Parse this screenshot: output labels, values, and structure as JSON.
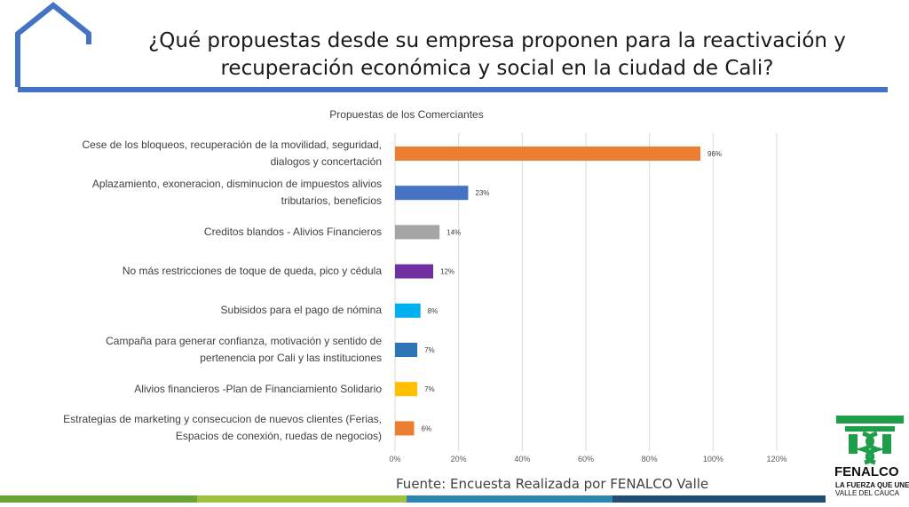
{
  "slide": {
    "title_line1": "¿Qué propuestas desde su empresa proponen para la reactivación y",
    "title_line2": "recuperación económica y social en la ciudad de Cali?",
    "source": "Fuente: Encuesta Realizada por FENALCO Valle",
    "logo": {
      "name": "FENALCO",
      "tagline1": "LA FUERZA QUE UNE",
      "tagline2": "VALLE DEL CAUCA",
      "color": "#1f9e4a"
    },
    "frame_color": "#4472c4",
    "footer_colors": [
      "#6aa338",
      "#9fc13f",
      "#2e86ad",
      "#1f4e79"
    ]
  },
  "chart_data": {
    "type": "bar",
    "orientation": "horizontal",
    "title": "Propuestas de los Comerciantes",
    "categories": [
      [
        "Cese de los bloqueos, recuperación de la movilidad, seguridad,",
        "dialogos y concertación"
      ],
      [
        "Aplazamiento, exoneracion, disminucion de impuestos alivios",
        "tributarios, beneficios"
      ],
      [
        "Creditos blandos - Alivios Financieros"
      ],
      [
        "No más restricciones de toque de queda, pico y cédula"
      ],
      [
        "Subisidos para el pago de nómina"
      ],
      [
        "Campaña para generar confianza, motivación y sentido de",
        "pertenencia por Cali y las instituciones"
      ],
      [
        "Alivios financieros -Plan de Financiamiento Solidario"
      ],
      [
        "Estrategias de marketing y consecucion de nuevos clientes (Ferias,",
        "Espacios de conexión, ruedas de negocios)"
      ]
    ],
    "values": [
      96,
      23,
      14,
      12,
      8,
      7,
      7,
      6
    ],
    "data_labels": [
      "96%",
      "23%",
      "14%",
      "12%",
      "8%",
      "7%",
      "7%",
      "6%"
    ],
    "colors": [
      "#ed7d31",
      "#4472c4",
      "#a5a5a5",
      "#7030a0",
      "#00b0f0",
      "#2e75b6",
      "#ffc000",
      "#ed7d31"
    ],
    "xlim": [
      0,
      120
    ],
    "xticks": [
      0,
      20,
      40,
      60,
      80,
      100,
      120
    ],
    "xtick_labels": [
      "0%",
      "20%",
      "40%",
      "60%",
      "80%",
      "100%",
      "120%"
    ],
    "grid": "vertical",
    "legend": "none",
    "gridline_color": "#d9d9d9"
  }
}
